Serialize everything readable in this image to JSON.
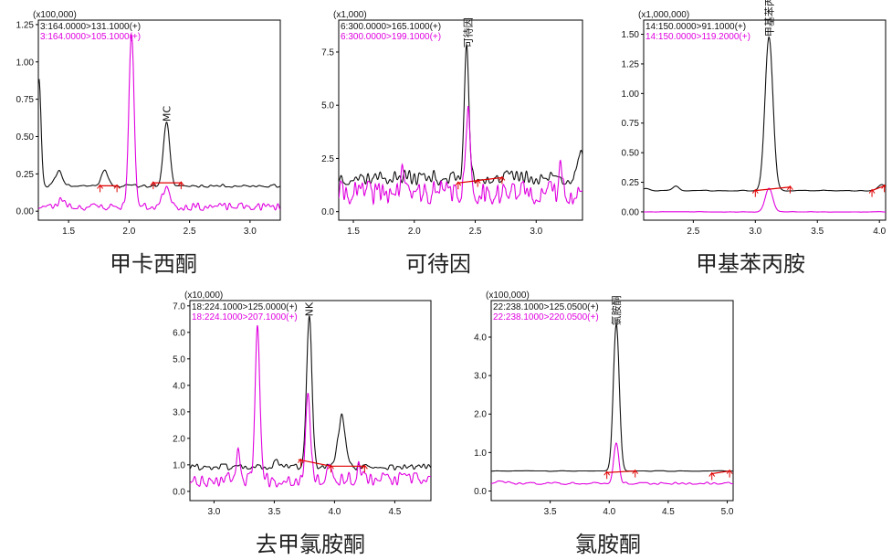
{
  "colors": {
    "black_trace": "#111111",
    "magenta_trace": "#e000e0",
    "baseline": "#e00000",
    "marker": "#e00000",
    "frame": "#000000"
  },
  "chart_data": [
    {
      "type": "line",
      "caption": "甲卡西酮",
      "scale_label": "(x100,000)",
      "channels": [
        {
          "label": "3:164.0000>131.1000(+)",
          "color": "#111111"
        },
        {
          "label": "3:164.0000>105.1000(+)",
          "color": "#e000e0"
        }
      ],
      "xlim": [
        1.25,
        3.25
      ],
      "xticks": [
        1.5,
        2.0,
        2.5,
        3.0
      ],
      "ylim": [
        -0.06,
        1.28
      ],
      "yticks": [
        0.0,
        0.25,
        0.5,
        0.75,
        1.0,
        1.25
      ],
      "series": [
        {
          "color": "#111111",
          "base": 0.17,
          "noise": 0.01,
          "noise_scale": 0.025,
          "seed": 11,
          "peaks": [
            [
              1.255,
              0.72,
              0.017
            ],
            [
              1.42,
              0.1,
              0.03
            ],
            [
              1.8,
              0.1,
              0.03
            ],
            [
              2.31,
              0.42,
              0.026
            ],
            [
              1.05,
              0.0,
              0.1
            ]
          ]
        },
        {
          "color": "#e000e0",
          "base": 0.03,
          "noise": 0.025,
          "noise_scale": 0.02,
          "seed": 23,
          "peaks": [
            [
              2.02,
              1.14,
              0.022
            ],
            [
              2.31,
              0.14,
              0.03
            ],
            [
              1.45,
              0.05,
              0.03
            ]
          ]
        }
      ],
      "baselines": [
        {
          "x": [
            1.76,
            1.9
          ],
          "y": [
            0.17,
            0.17
          ]
        },
        {
          "x": [
            2.2,
            2.43
          ],
          "y": [
            0.19,
            0.19
          ]
        }
      ],
      "markers": [
        1.76,
        1.9,
        2.2,
        2.43
      ],
      "peak_labels": [
        {
          "text": "MC",
          "x": 2.31,
          "y": 0.6
        }
      ]
    },
    {
      "type": "line",
      "caption": "可待因",
      "scale_label": "(x1,000)",
      "channels": [
        {
          "label": "6:300.0000>165.1000(+)",
          "color": "#111111"
        },
        {
          "label": "6:300.0000>199.1000(+)",
          "color": "#e000e0"
        }
      ],
      "xlim": [
        1.38,
        3.38
      ],
      "xticks": [
        1.5,
        2.0,
        2.5,
        3.0
      ],
      "ylim": [
        -0.4,
        9.0
      ],
      "yticks": [
        0.0,
        2.5,
        5.0,
        7.5
      ],
      "series": [
        {
          "color": "#111111",
          "base": 1.6,
          "noise": 0.35,
          "noise_scale": 0.02,
          "seed": 37,
          "peaks": [
            [
              2.43,
              6.2,
              0.018
            ],
            [
              3.37,
              1.3,
              0.02
            ]
          ]
        },
        {
          "color": "#e000e0",
          "base": 0.9,
          "noise": 0.55,
          "noise_scale": 0.015,
          "seed": 41,
          "peaks": [
            [
              2.44,
              3.6,
              0.018
            ],
            [
              1.9,
              1.4,
              0.012
            ],
            [
              3.2,
              1.4,
              0.012
            ]
          ]
        }
      ],
      "baselines": [
        {
          "x": [
            2.36,
            2.72
          ],
          "y": [
            1.35,
            1.6
          ]
        }
      ],
      "markers": [
        2.36,
        2.52,
        2.72
      ],
      "peak_labels": [
        {
          "text": "可待因",
          "x": 2.44,
          "y": 7.7
        }
      ]
    },
    {
      "type": "line",
      "caption": "甲基苯丙胺",
      "scale_label": "(x1,000,000)",
      "channels": [
        {
          "label": "14:150.0000>91.1000(+)",
          "color": "#111111"
        },
        {
          "label": "14:150.0000>119.2000(+)",
          "color": "#e000e0"
        }
      ],
      "xlim": [
        2.1,
        4.05
      ],
      "xticks": [
        2.5,
        3.0,
        3.5,
        4.0
      ],
      "ylim": [
        -0.07,
        1.62
      ],
      "yticks": [
        0.0,
        0.25,
        0.5,
        0.75,
        1.0,
        1.25,
        1.5
      ],
      "series": [
        {
          "color": "#111111",
          "base": 0.18,
          "noise": 0.004,
          "noise_scale": 0.05,
          "seed": 53,
          "peaks": [
            [
              3.11,
              1.3,
              0.032
            ],
            [
              2.12,
              0.02,
              0.03
            ],
            [
              2.36,
              0.04,
              0.025
            ],
            [
              4.02,
              0.05,
              0.03
            ]
          ]
        },
        {
          "color": "#e000e0",
          "base": 0.0,
          "noise": 0.002,
          "noise_scale": 0.05,
          "seed": 59,
          "peaks": [
            [
              3.11,
              0.2,
              0.03
            ]
          ]
        }
      ],
      "baselines": [
        {
          "x": [
            3.0,
            3.28
          ],
          "y": [
            0.18,
            0.21
          ]
        },
        {
          "x": [
            3.94,
            4.04
          ],
          "y": [
            0.18,
            0.22
          ]
        }
      ],
      "markers": [
        3.0,
        3.28,
        3.94,
        4.04
      ],
      "peak_labels": [
        {
          "text": "甲基苯丙胺",
          "x": 3.11,
          "y": 1.48
        }
      ]
    },
    {
      "type": "line",
      "caption": "去甲氯胺酮",
      "scale_label": "(x10,000)",
      "channels": [
        {
          "label": "18:224.1000>125.0000(+)",
          "color": "#111111"
        },
        {
          "label": "18:224.1000>207.1000(+)",
          "color": "#e000e0"
        }
      ],
      "xlim": [
        2.8,
        4.8
      ],
      "xticks": [
        3.0,
        3.5,
        4.0,
        4.5
      ],
      "ylim": [
        -0.35,
        7.2
      ],
      "yticks": [
        0.0,
        1.0,
        2.0,
        3.0,
        4.0,
        5.0,
        6.0,
        7.0
      ],
      "series": [
        {
          "color": "#111111",
          "base": 0.92,
          "noise": 0.12,
          "noise_scale": 0.02,
          "seed": 61,
          "peaks": [
            [
              3.79,
              5.7,
              0.022
            ],
            [
              4.06,
              1.9,
              0.03
            ],
            [
              3.52,
              0.2,
              0.02
            ]
          ]
        },
        {
          "color": "#e000e0",
          "base": 0.45,
          "noise": 0.28,
          "noise_scale": 0.02,
          "seed": 67,
          "peaks": [
            [
              3.36,
              5.7,
              0.02
            ],
            [
              3.78,
              3.4,
              0.02
            ],
            [
              3.2,
              1.0,
              0.02
            ],
            [
              3.95,
              0.6,
              0.02
            ],
            [
              4.2,
              0.4,
              0.02
            ]
          ]
        }
      ],
      "baselines": [
        {
          "x": [
            3.7,
            3.97
          ],
          "y": [
            1.2,
            0.95
          ]
        },
        {
          "x": [
            3.97,
            4.25
          ],
          "y": [
            0.95,
            0.95
          ]
        }
      ],
      "markers": [
        3.72,
        3.97,
        4.25
      ],
      "peak_labels": [
        {
          "text": "NK",
          "x": 3.79,
          "y": 6.6
        }
      ]
    },
    {
      "type": "line",
      "caption": "氯胺酮",
      "scale_label": "(x100,000)",
      "channels": [
        {
          "label": "22:238.1000>125.0500(+)",
          "color": "#111111"
        },
        {
          "label": "22:238.1000>220.0500(+)",
          "color": "#e000e0"
        }
      ],
      "xlim": [
        3.0,
        5.05
      ],
      "xticks": [
        3.5,
        4.0,
        4.5,
        5.0
      ],
      "ylim": [
        -0.25,
        4.95
      ],
      "yticks": [
        0.0,
        1.0,
        2.0,
        3.0,
        4.0
      ],
      "series": [
        {
          "color": "#111111",
          "base": 0.52,
          "noise": 0.008,
          "noise_scale": 0.05,
          "seed": 71,
          "peaks": [
            [
              4.06,
              3.82,
              0.025
            ]
          ]
        },
        {
          "color": "#e000e0",
          "base": 0.2,
          "noise": 0.03,
          "noise_scale": 0.03,
          "seed": 79,
          "peaks": [
            [
              4.06,
              1.05,
              0.022
            ],
            [
              3.1,
              0.05,
              0.05
            ]
          ]
        }
      ],
      "baselines": [
        {
          "x": [
            3.98,
            4.22
          ],
          "y": [
            0.48,
            0.52
          ]
        },
        {
          "x": [
            4.87,
            5.02
          ],
          "y": [
            0.45,
            0.52
          ]
        }
      ],
      "markers": [
        3.98,
        4.22,
        4.87,
        5.02
      ],
      "peak_labels": [
        {
          "text": "氯胺酮",
          "x": 4.06,
          "y": 4.3
        }
      ]
    }
  ]
}
